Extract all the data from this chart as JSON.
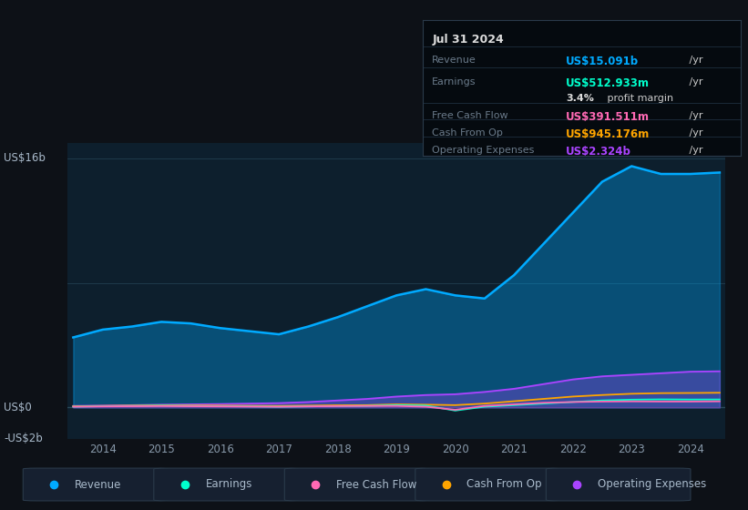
{
  "bg_color": "#0d1117",
  "plot_bg_color": "#0d1f2d",
  "grid_color": "#1e3a4a",
  "years": [
    2013.5,
    2014.0,
    2014.5,
    2015.0,
    2015.5,
    2016.0,
    2016.5,
    2017.0,
    2017.5,
    2018.0,
    2018.5,
    2019.0,
    2019.5,
    2020.0,
    2020.5,
    2021.0,
    2021.5,
    2022.0,
    2022.5,
    2023.0,
    2023.5,
    2024.0,
    2024.5
  ],
  "revenue": [
    4.5,
    5.0,
    5.2,
    5.5,
    5.4,
    5.1,
    4.9,
    4.7,
    5.2,
    5.8,
    6.5,
    7.2,
    7.6,
    7.2,
    7.0,
    8.5,
    10.5,
    12.5,
    14.5,
    15.5,
    15.0,
    15.0,
    15.091
  ],
  "earnings": [
    0.05,
    0.08,
    0.1,
    0.12,
    0.1,
    0.08,
    0.07,
    0.05,
    0.07,
    0.09,
    0.1,
    0.15,
    0.12,
    -0.2,
    0.05,
    0.15,
    0.25,
    0.35,
    0.45,
    0.5,
    0.52,
    0.51,
    0.513
  ],
  "free_cash_flow": [
    0.05,
    0.07,
    0.08,
    0.09,
    0.08,
    0.07,
    0.06,
    0.05,
    0.07,
    0.09,
    0.1,
    0.1,
    0.05,
    -0.15,
    0.1,
    0.2,
    0.3,
    0.35,
    0.38,
    0.39,
    0.38,
    0.38,
    0.392
  ],
  "cash_from_op": [
    0.08,
    0.1,
    0.12,
    0.14,
    0.13,
    0.12,
    0.11,
    0.1,
    0.12,
    0.14,
    0.15,
    0.2,
    0.18,
    0.15,
    0.25,
    0.4,
    0.55,
    0.7,
    0.8,
    0.88,
    0.92,
    0.93,
    0.945
  ],
  "operating_expenses": [
    0.1,
    0.12,
    0.15,
    0.18,
    0.2,
    0.22,
    0.25,
    0.28,
    0.35,
    0.45,
    0.55,
    0.7,
    0.8,
    0.85,
    1.0,
    1.2,
    1.5,
    1.8,
    2.0,
    2.1,
    2.2,
    2.3,
    2.324
  ],
  "revenue_color": "#00aaff",
  "earnings_color": "#00ffcc",
  "free_cash_flow_color": "#ff69b4",
  "cash_from_op_color": "#ffa500",
  "operating_expenses_color": "#aa44ff",
  "ylim": [
    -2,
    17
  ],
  "xlabel_color": "#8899aa",
  "xticks": [
    2014,
    2015,
    2016,
    2017,
    2018,
    2019,
    2020,
    2021,
    2022,
    2023,
    2024
  ],
  "infobox": {
    "date": "Jul 31 2024",
    "revenue_val": "US$15.091b",
    "earnings_val": "US$512.933m",
    "profit_margin": "3.4%",
    "fcf_val": "US$391.511m",
    "cashfromop_val": "US$945.176m",
    "opex_val": "US$2.324b"
  },
  "legend_items": [
    "Revenue",
    "Earnings",
    "Free Cash Flow",
    "Cash From Op",
    "Operating Expenses"
  ],
  "legend_colors": [
    "#00aaff",
    "#00ffcc",
    "#ff69b4",
    "#ffa500",
    "#aa44ff"
  ]
}
